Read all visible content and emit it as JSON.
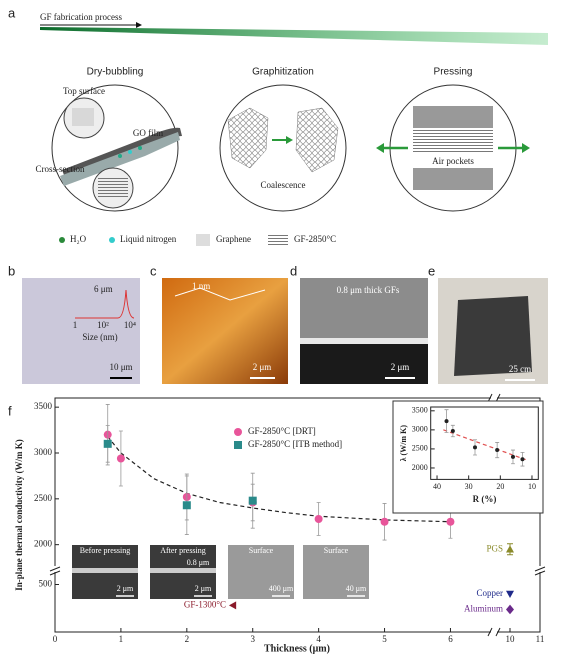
{
  "figure_a": {
    "label": "a",
    "process": "GF fabrication process",
    "steps": [
      {
        "title": "Dry-bubbling",
        "callouts": [
          "Top surface",
          "GO film",
          "Cross-section"
        ]
      },
      {
        "title": "Graphitization",
        "callouts": [
          "Coalescence"
        ]
      },
      {
        "title": "Pressing",
        "callouts": [
          "Air pockets"
        ]
      }
    ],
    "legend": [
      "H₂O",
      "Liquid nitrogen",
      "Graphene",
      "GF-2850°C"
    ]
  },
  "figure_b": {
    "label": "b",
    "peak_label": "6 μm",
    "axis_label": "Size (nm)",
    "axis_ticks": [
      "1",
      "10²",
      "10⁴"
    ],
    "scale_bar": "10 μm"
  },
  "figure_c": {
    "label": "c",
    "height_label": "1 nm",
    "scale_bar": "2 μm"
  },
  "figure_d": {
    "label": "d",
    "caption": "0.8 μm thick GFs",
    "scale_bar": "2 μm"
  },
  "figure_e": {
    "label": "e",
    "scale_bar": "25 cm"
  },
  "figure_f": {
    "label": "f",
    "image_insets": [
      {
        "title": "Before pressing",
        "scale_bar": "2 μm"
      },
      {
        "title": "After pressing",
        "thickness": "0.8 μm",
        "scale_bar": "2 μm"
      },
      {
        "title": "Surface",
        "scale_bar": "400 μm"
      },
      {
        "title": "Surface",
        "scale_bar": "40 μm"
      }
    ]
  },
  "chart_data": [
    {
      "type": "scatter",
      "x_label": "Thickness (μm)",
      "y_label": "In-plane thermal conductivity (W/m K)",
      "xlim": [
        0,
        11
      ],
      "x_break": [
        6.6,
        9.6
      ],
      "xticks": [
        0,
        1,
        2,
        3,
        4,
        5,
        6,
        10,
        11
      ],
      "ylim": [
        0,
        3600
      ],
      "y_break": [
        600,
        1800
      ],
      "yticks": [
        500,
        2000,
        2500,
        3000,
        3500
      ],
      "series": [
        {
          "name": "GF-2850°C [DRT]",
          "color": "#e8559a",
          "marker": "circle",
          "x": [
            0.8,
            1,
            2,
            3,
            4,
            5,
            6
          ],
          "values": [
            3200,
            2940,
            2520,
            2460,
            2280,
            2250,
            2250
          ],
          "errors": [
            330,
            300,
            250,
            200,
            180,
            200,
            180
          ]
        },
        {
          "name": "GF-2850°C [ITB method]",
          "color": "#2a8a8a",
          "marker": "square",
          "x": [
            0.8,
            2,
            3
          ],
          "values": [
            3100,
            2430,
            2480
          ],
          "errors": [
            200,
            320,
            300
          ]
        }
      ],
      "fit": {
        "x": [
          0.8,
          1,
          1.5,
          2,
          2.5,
          3,
          3.5,
          4,
          4.5,
          5,
          5.5,
          6
        ],
        "values": [
          3180,
          3000,
          2720,
          2560,
          2460,
          2400,
          2350,
          2310,
          2290,
          2270,
          2260,
          2250
        ]
      },
      "references": [
        {
          "name": "PGS",
          "color": "#8a8a2a",
          "marker": "triangle-up",
          "x": 10,
          "value": 1950,
          "error": 60
        },
        {
          "name": "Copper",
          "color": "#1f2a8a",
          "marker": "triangle-down",
          "x": 10,
          "value": 400
        },
        {
          "name": "Aluminum",
          "color": "#6a2a8a",
          "marker": "diamond",
          "x": 10,
          "value": 237
        },
        {
          "name": "GF-1300°C",
          "color": "#8a1a2a",
          "marker": "triangle-left",
          "x": 2.7,
          "value": 280
        }
      ]
    },
    {
      "type": "scatter",
      "x_label": "R (%)",
      "y_label": "λ (W/m K)",
      "xlim": [
        42,
        8
      ],
      "xticks": [
        40,
        30,
        20,
        10
      ],
      "ylim": [
        1700,
        3600
      ],
      "yticks": [
        2000,
        2500,
        3000,
        3500
      ],
      "series": [
        {
          "color": "#222222",
          "marker": "circle",
          "x": [
            37,
            35,
            28,
            21,
            16,
            13
          ],
          "values": [
            3230,
            2970,
            2540,
            2470,
            2290,
            2230
          ],
          "errors": [
            300,
            150,
            200,
            200,
            180,
            180
          ]
        }
      ],
      "fit": {
        "x": [
          38,
          12
        ],
        "values": [
          3000,
          2220
        ],
        "color": "#e05050"
      }
    }
  ]
}
